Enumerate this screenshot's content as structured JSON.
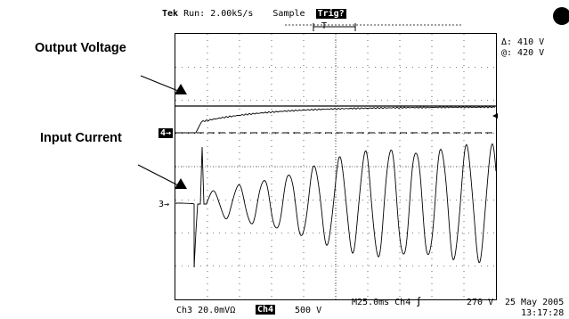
{
  "header": {
    "brand": "Tek",
    "run_status": "Run: 2.00kS/s",
    "acq_mode": "Sample",
    "trig_badge": "Trig?",
    "trig_marker": "T"
  },
  "annotations": {
    "output_label": "Output Voltage",
    "input_label": "Input Current"
  },
  "cursor_readout": {
    "delta": "Δ: 410 V",
    "at": "@: 420 V"
  },
  "channel_markers": {
    "ch4": "4",
    "ch3": "3"
  },
  "footer": {
    "ch3": "Ch3  20.0mVΩ",
    "ch4_badge": "Ch4",
    "ch4_scale": "500 V",
    "timebase": "M25.0ms  Ch4",
    "trig_symbol": "∫",
    "trig_level": "270 V",
    "date": "25 May 2005",
    "time": "13:17:28"
  },
  "icons": {
    "status": "filled-circle-icon",
    "pointer": "black-triangle-icon"
  },
  "waveforms": {
    "ch4_output_voltage": "rises gradually then flattens near the upper cursor",
    "ch3_input_current": "growing sinusoid after a sharp spike"
  }
}
